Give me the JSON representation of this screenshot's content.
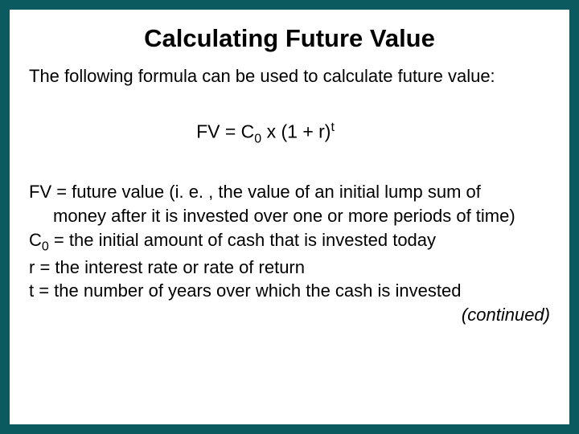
{
  "colors": {
    "frame": "#0a5a5f",
    "background": "#ffffff",
    "text": "#000000"
  },
  "title": "Calculating Future Value",
  "intro": "The following formula can be used to calculate future value:",
  "formula": {
    "lhs": "FV",
    "eq": " = ",
    "c": "C",
    "c_sub": "0",
    "mid": " x (1 + r)",
    "t_sup": "t"
  },
  "definitions": {
    "fv_line1": "FV = future value (i. e. , the value of an initial lump sum of",
    "fv_line2": "money after it is invested over one or more periods of time)",
    "c0_prefix": "C",
    "c0_sub": "0",
    "c0_rest": " = the initial amount of cash that is invested today",
    "r": "r = the interest rate or rate of return",
    "t": "t = the number of years over which the cash is invested"
  },
  "continued": "(continued)"
}
